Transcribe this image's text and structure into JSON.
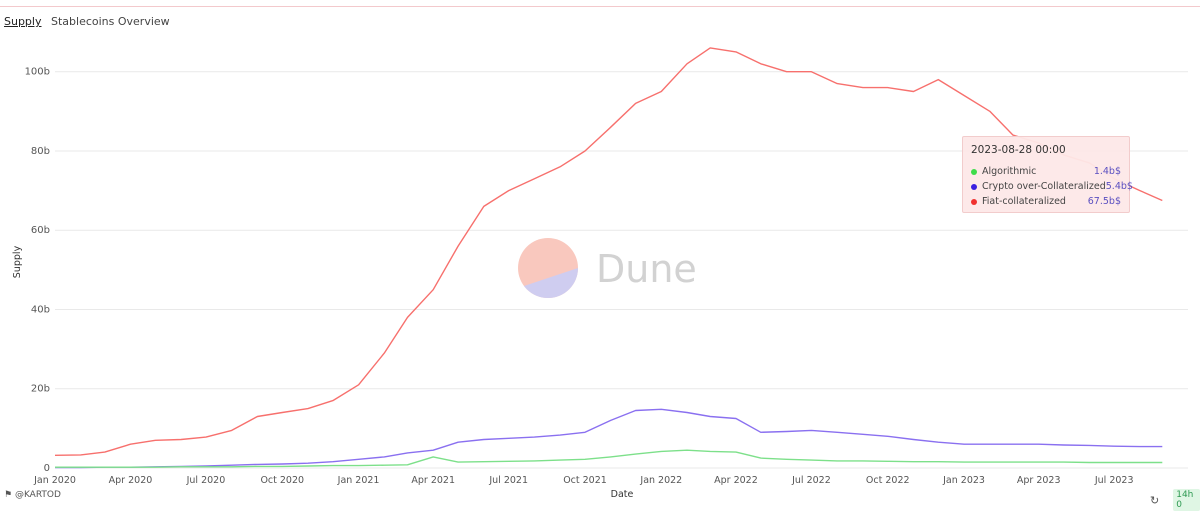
{
  "header": {
    "active_tab": "Supply",
    "title": "Stablecoins Overview"
  },
  "watermark": {
    "text": "Dune"
  },
  "footer": {
    "author": "@KARTOD",
    "badge": "14h 0"
  },
  "tooltip": {
    "date": "2023-08-28 00:00",
    "rows": [
      {
        "name": "Algorithmic",
        "value": "1.4b$",
        "color": "#3ddc4a"
      },
      {
        "name": "Crypto over-Collateralized",
        "value": "5.4b$",
        "color": "#3b1fe0"
      },
      {
        "name": "Fiat-collateralized",
        "value": "67.5b$",
        "color": "#f0312f"
      }
    ]
  },
  "chart_data": {
    "type": "line",
    "xlabel": "Date",
    "ylabel": "Supply",
    "ylim": [
      0,
      108
    ],
    "y_unit": "billions",
    "yticks": [
      0,
      20,
      40,
      60,
      80,
      100
    ],
    "ytick_labels": [
      "0",
      "20b",
      "40b",
      "60b",
      "80b",
      "100b"
    ],
    "xticks": [
      "Jan 2020",
      "Apr 2020",
      "Jul 2020",
      "Oct 2020",
      "Jan 2021",
      "Apr 2021",
      "Jul 2021",
      "Oct 2021",
      "Jan 2022",
      "Apr 2022",
      "Jul 2022",
      "Oct 2022",
      "Jan 2023",
      "Apr 2023",
      "Jul 2023"
    ],
    "x": [
      "2020-01-01",
      "2020-02-01",
      "2020-03-01",
      "2020-04-01",
      "2020-05-01",
      "2020-06-01",
      "2020-07-01",
      "2020-08-01",
      "2020-09-01",
      "2020-10-01",
      "2020-11-01",
      "2020-12-01",
      "2021-01-01",
      "2021-02-01",
      "2021-03-01",
      "2021-04-01",
      "2021-05-01",
      "2021-06-01",
      "2021-07-01",
      "2021-08-01",
      "2021-09-01",
      "2021-10-01",
      "2021-11-01",
      "2021-12-01",
      "2022-01-01",
      "2022-02-01",
      "2022-03-01",
      "2022-04-01",
      "2022-05-01",
      "2022-06-01",
      "2022-07-01",
      "2022-08-01",
      "2022-09-01",
      "2022-10-01",
      "2022-11-01",
      "2022-12-01",
      "2023-01-01",
      "2023-02-01",
      "2023-03-01",
      "2023-04-01",
      "2023-05-01",
      "2023-06-01",
      "2023-07-01",
      "2023-08-01",
      "2023-08-28"
    ],
    "series": [
      {
        "name": "Fiat-collateralized",
        "color": "#f7706d",
        "values": [
          3.2,
          3.3,
          4.0,
          6.0,
          7.0,
          7.2,
          7.8,
          9.5,
          13,
          14,
          15,
          17,
          21,
          29,
          38,
          45,
          56,
          66,
          70,
          73,
          76,
          80,
          86,
          92,
          95,
          102,
          106,
          105,
          102,
          100,
          100,
          97,
          96,
          96,
          95,
          98,
          94,
          90,
          84,
          82,
          79,
          77,
          73,
          70,
          67.5
        ]
      },
      {
        "name": "Crypto over-Collateralized",
        "color": "#8a70f0",
        "values": [
          0.1,
          0.1,
          0.2,
          0.2,
          0.3,
          0.4,
          0.5,
          0.7,
          0.9,
          1.0,
          1.2,
          1.6,
          2.2,
          2.8,
          3.8,
          4.5,
          6.5,
          7.2,
          7.5,
          7.8,
          8.3,
          9.0,
          12,
          14.5,
          14.8,
          14,
          13,
          12.5,
          9,
          9.2,
          9.5,
          9.0,
          8.5,
          8.0,
          7.2,
          6.5,
          6.0,
          6.0,
          6.0,
          6.0,
          5.8,
          5.7,
          5.5,
          5.4,
          5.4
        ]
      },
      {
        "name": "Algorithmic",
        "color": "#7de08a",
        "values": [
          0.2,
          0.2,
          0.2,
          0.2,
          0.2,
          0.3,
          0.3,
          0.3,
          0.4,
          0.4,
          0.5,
          0.6,
          0.6,
          0.7,
          0.8,
          2.8,
          1.5,
          1.6,
          1.7,
          1.8,
          2.0,
          2.2,
          2.8,
          3.5,
          4.2,
          4.5,
          4.2,
          4.0,
          2.5,
          2.2,
          2.0,
          1.8,
          1.8,
          1.7,
          1.6,
          1.6,
          1.5,
          1.5,
          1.5,
          1.5,
          1.5,
          1.4,
          1.4,
          1.4,
          1.4
        ]
      }
    ]
  }
}
